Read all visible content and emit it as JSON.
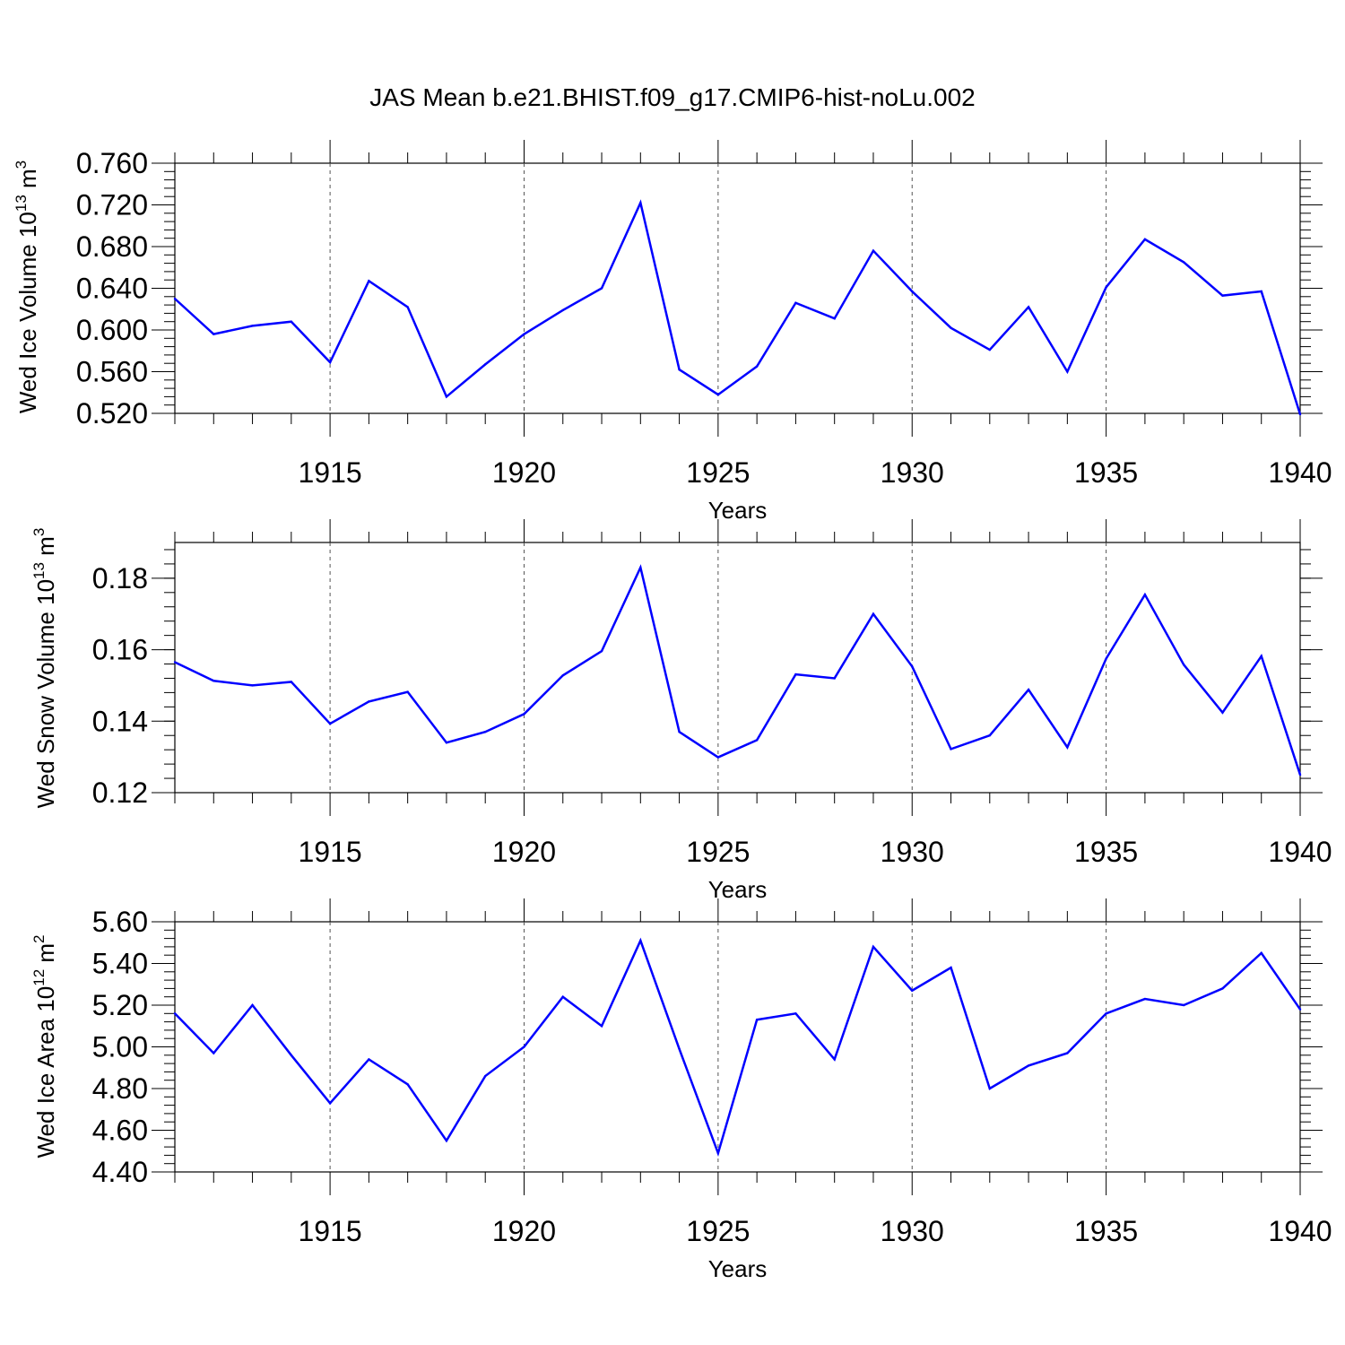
{
  "figure": {
    "title": "JAS Mean b.e21.BHIST.f09_g17.CMIP6-hist-noLu.002"
  },
  "chart_data": [
    {
      "type": "line",
      "title": "",
      "xlabel": "Years",
      "ylabel_main": "Wed Ice Volume 10",
      "ylabel_exp": "13",
      "ylabel_unit": " m",
      "ylabel_unit_exp": "3",
      "xlim": [
        1911,
        1940
      ],
      "ylim": [
        0.52,
        0.76
      ],
      "x_ticks": [
        1915,
        1920,
        1925,
        1930,
        1935,
        1940
      ],
      "x_tick_labels": [
        "1915",
        "1920",
        "1925",
        "1930",
        "1935",
        "1940"
      ],
      "y_ticks": [
        0.52,
        0.56,
        0.6,
        0.64,
        0.68,
        0.72,
        0.76
      ],
      "y_tick_labels": [
        "0.520",
        "0.560",
        "0.600",
        "0.640",
        "0.680",
        "0.720",
        "0.760"
      ],
      "grid": "vertical dashed at major x ticks",
      "series": [
        {
          "name": "Wed Ice Volume",
          "color": "#0000ff",
          "x": [
            1911,
            1912,
            1913,
            1914,
            1915,
            1916,
            1917,
            1918,
            1919,
            1920,
            1921,
            1922,
            1923,
            1924,
            1925,
            1926,
            1927,
            1928,
            1929,
            1930,
            1931,
            1932,
            1933,
            1934,
            1935,
            1936,
            1937,
            1938,
            1939,
            1940
          ],
          "values": [
            0.63,
            0.596,
            0.604,
            0.608,
            0.569,
            0.647,
            0.622,
            0.536,
            0.567,
            0.596,
            0.619,
            0.64,
            0.722,
            0.562,
            0.538,
            0.565,
            0.626,
            0.611,
            0.676,
            0.637,
            0.602,
            0.581,
            0.622,
            0.56,
            0.641,
            0.687,
            0.665,
            0.633,
            0.637,
            0.519
          ]
        }
      ]
    },
    {
      "type": "line",
      "title": "",
      "xlabel": "Years",
      "ylabel_main": "Wed Snow Volume 10",
      "ylabel_exp": "13",
      "ylabel_unit": " m",
      "ylabel_unit_exp": "3",
      "xlim": [
        1911,
        1940
      ],
      "ylim": [
        0.12,
        0.19
      ],
      "x_ticks": [
        1915,
        1920,
        1925,
        1930,
        1935,
        1940
      ],
      "x_tick_labels": [
        "1915",
        "1920",
        "1925",
        "1930",
        "1935",
        "1940"
      ],
      "y_ticks": [
        0.12,
        0.14,
        0.16,
        0.18
      ],
      "y_tick_labels": [
        "0.12",
        "0.14",
        "0.16",
        "0.18"
      ],
      "grid": "vertical dashed at major x ticks",
      "series": [
        {
          "name": "Wed Snow Volume",
          "color": "#0000ff",
          "x": [
            1911,
            1912,
            1913,
            1914,
            1915,
            1916,
            1917,
            1918,
            1919,
            1920,
            1921,
            1922,
            1923,
            1924,
            1925,
            1926,
            1927,
            1928,
            1929,
            1930,
            1931,
            1932,
            1933,
            1934,
            1935,
            1936,
            1937,
            1938,
            1939,
            1940
          ],
          "values": [
            0.1565,
            0.1513,
            0.15,
            0.151,
            0.1393,
            0.1455,
            0.1482,
            0.134,
            0.137,
            0.142,
            0.1528,
            0.1596,
            0.183,
            0.137,
            0.1299,
            0.1347,
            0.1531,
            0.152,
            0.17,
            0.1553,
            0.1322,
            0.136,
            0.1488,
            0.1327,
            0.1575,
            0.1754,
            0.1558,
            0.1424,
            0.1582,
            0.125
          ]
        }
      ]
    },
    {
      "type": "line",
      "title": "",
      "xlabel": "Years",
      "ylabel_main": "Wed Ice Area 10",
      "ylabel_exp": "12",
      "ylabel_unit": " m",
      "ylabel_unit_exp": "2",
      "xlim": [
        1911,
        1940
      ],
      "ylim": [
        4.4,
        5.6
      ],
      "x_ticks": [
        1915,
        1920,
        1925,
        1930,
        1935,
        1940
      ],
      "x_tick_labels": [
        "1915",
        "1920",
        "1925",
        "1930",
        "1935",
        "1940"
      ],
      "y_ticks": [
        4.4,
        4.6,
        4.8,
        5.0,
        5.2,
        5.4,
        5.6
      ],
      "y_tick_labels": [
        "4.40",
        "4.60",
        "4.80",
        "5.00",
        "5.20",
        "5.40",
        "5.60"
      ],
      "grid": "vertical dashed at major x ticks",
      "series": [
        {
          "name": "Wed Ice Area",
          "color": "#0000ff",
          "x": [
            1911,
            1912,
            1913,
            1914,
            1915,
            1916,
            1917,
            1918,
            1919,
            1920,
            1921,
            1922,
            1923,
            1924,
            1925,
            1926,
            1927,
            1928,
            1929,
            1930,
            1931,
            1932,
            1933,
            1934,
            1935,
            1936,
            1937,
            1938,
            1939,
            1940
          ],
          "values": [
            5.16,
            4.97,
            5.2,
            4.96,
            4.73,
            4.94,
            4.82,
            4.55,
            4.86,
            5.0,
            5.24,
            5.1,
            5.51,
            4.99,
            4.49,
            5.13,
            5.16,
            4.94,
            5.48,
            5.27,
            5.38,
            4.8,
            4.91,
            4.97,
            5.16,
            5.23,
            5.2,
            5.28,
            5.45,
            5.18
          ]
        }
      ]
    }
  ]
}
